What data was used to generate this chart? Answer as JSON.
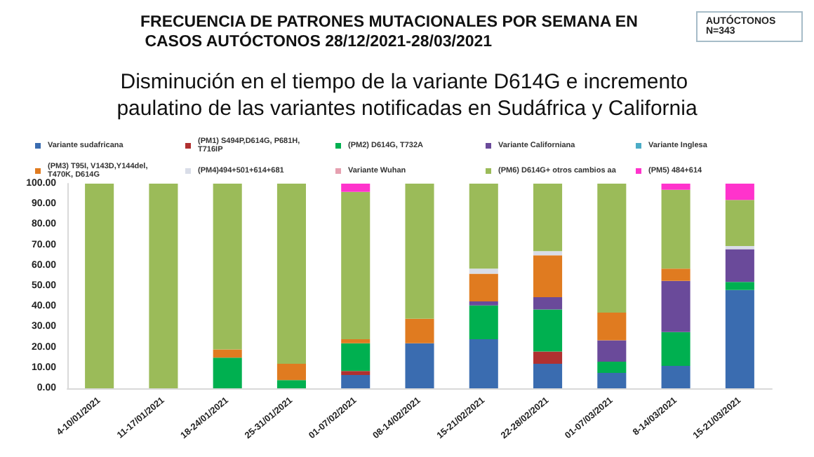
{
  "chart_data": {
    "type": "bar",
    "stacked": true,
    "title": "FRECUENCIA DE PATRONES MUTACIONALES POR SEMANA EN CASOS AUTÓCTONOS 28/12/2021-28/03/2021",
    "subtitle": "Disminución en el tiempo de la variante D614G e incremento paulatino de las variantes notificadas en Sudáfrica y California",
    "annotations": [
      "AUTÓCTONOS N=343"
    ],
    "categories": [
      "4-10/01/2021",
      "11-17/01/2021",
      "18-24/01/2021",
      "25-31/01/2021",
      "01-07/02/2021",
      "08-14/02/2021",
      "15-21/02/2021",
      "22-28/02/2021",
      "01-07/03/2021",
      "8-14/03/2021",
      "15-21/03/2021"
    ],
    "series": [
      {
        "name": "Variante sudafricana",
        "color": "#3a6cb0",
        "values": [
          0,
          0,
          0,
          0,
          6.5,
          22,
          24,
          12,
          7.5,
          11,
          48
        ]
      },
      {
        "name": "(PM1) S494P,D614G, P681H, T716IP",
        "color": "#b03030",
        "values": [
          0,
          0,
          0,
          0,
          2,
          0,
          0,
          6,
          0,
          0,
          0
        ]
      },
      {
        "name": "(PM2) D614G, T732A",
        "color": "#00b050",
        "values": [
          0,
          0,
          15,
          4,
          13.5,
          0,
          16.5,
          20.5,
          5.5,
          16.5,
          4
        ]
      },
      {
        "name": "Variante Californiana",
        "color": "#6a4a9a",
        "values": [
          0,
          0,
          0,
          0,
          0,
          0,
          2,
          6,
          10.5,
          25,
          16
        ]
      },
      {
        "name": "Variante Inglesa",
        "color": "#4bacc6",
        "values": [
          0,
          0,
          0,
          0,
          0,
          0,
          0,
          0,
          0,
          0,
          0
        ]
      },
      {
        "name": "(PM3) T95I, V143D,Y144del, T470K, D614G",
        "color": "#e07b20",
        "values": [
          0,
          0,
          4,
          8,
          2,
          12,
          13.5,
          20.5,
          13.5,
          6,
          0
        ]
      },
      {
        "name": "(PM4)494+501+614+681",
        "color": "#d9dde8",
        "values": [
          0,
          0,
          0,
          0,
          0,
          0,
          2.5,
          2,
          0,
          0,
          1.5
        ]
      },
      {
        "name": "Variante Wuhan",
        "color": "#e6a0b0",
        "values": [
          0,
          0,
          0,
          0,
          0,
          0,
          0,
          0,
          0,
          0,
          0
        ]
      },
      {
        "name": "(PM6) D614G+ otros cambios aa",
        "color": "#9bbb59",
        "values": [
          100,
          100,
          81,
          88,
          72,
          66,
          41.5,
          33,
          63,
          38.5,
          22.5
        ]
      },
      {
        "name": "(PM5) 484+614",
        "color": "#ff33cc",
        "values": [
          0,
          0,
          0,
          0,
          4,
          0,
          0,
          0,
          0,
          3,
          8
        ]
      }
    ],
    "ylim": [
      0,
      100
    ],
    "yticks": [
      {
        "value": 0,
        "label": "0.00"
      },
      {
        "value": 10,
        "label": "10.00"
      },
      {
        "value": 20,
        "label": "20.00"
      },
      {
        "value": 30,
        "label": "30.00"
      },
      {
        "value": 40,
        "label": "40.00"
      },
      {
        "value": 50,
        "label": "50.00"
      },
      {
        "value": 60,
        "label": "60.00"
      },
      {
        "value": 70,
        "label": "70.00"
      },
      {
        "value": 80,
        "label": "80.00"
      },
      {
        "value": 90,
        "label": "90.00"
      },
      {
        "value": 100,
        "label": "100.00"
      }
    ],
    "grid": false,
    "legend": "top"
  }
}
